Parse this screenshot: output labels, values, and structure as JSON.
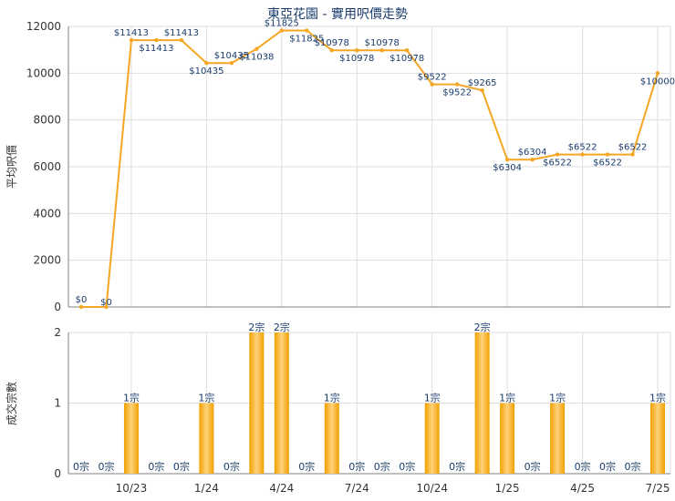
{
  "chart_data": [
    {
      "type": "line",
      "title": "東亞花園 - 實用呎價走勢",
      "ylabel": "平均呎價",
      "ylim": [
        0,
        12000
      ],
      "yticks": [
        "0",
        "2000",
        "4000",
        "6000",
        "8000",
        "10000",
        "12000"
      ],
      "line_color": "#f5a623",
      "grid": true,
      "series": [
        {
          "values": [
            0,
            0,
            11413,
            11413,
            11413,
            10435,
            10435,
            11038,
            11825,
            11825,
            10978,
            10978,
            10978,
            10978,
            9522,
            9522,
            9265,
            6304,
            6304,
            6522,
            6522,
            6522,
            6522,
            10000
          ],
          "labels": [
            "$0",
            "$0",
            "$11413",
            "$11413",
            "$11413",
            "$10435",
            "$10435",
            "$11038",
            "$11825",
            "$11825",
            "$10978",
            "$10978",
            "$10978",
            "$10978",
            "$9522",
            "$9522",
            "$9265",
            "$6304",
            "$6304",
            "$6522",
            "$6522",
            "$6522",
            "$6522",
            "$10000"
          ]
        }
      ]
    },
    {
      "type": "bar",
      "ylabel": "成交宗數",
      "ylim": [
        0,
        2
      ],
      "yticks": [
        "0",
        "1",
        "2"
      ],
      "bar_color": "#f5a623",
      "grid": true,
      "x_tick_labels": [
        {
          "index": 2,
          "label": "10/23"
        },
        {
          "index": 5,
          "label": "1/24"
        },
        {
          "index": 8,
          "label": "4/24"
        },
        {
          "index": 11,
          "label": "7/24"
        },
        {
          "index": 14,
          "label": "10/24"
        },
        {
          "index": 17,
          "label": "1/25"
        },
        {
          "index": 20,
          "label": "4/25"
        },
        {
          "index": 23,
          "label": "7/25"
        }
      ],
      "series": [
        {
          "values": [
            0,
            0,
            1,
            0,
            0,
            1,
            0,
            2,
            2,
            0,
            1,
            0,
            0,
            0,
            1,
            0,
            2,
            1,
            0,
            1,
            0,
            0,
            0,
            1
          ],
          "labels": [
            "0宗",
            "0宗",
            "1宗",
            "0宗",
            "0宗",
            "1宗",
            "0宗",
            "2宗",
            "2宗",
            "0宗",
            "1宗",
            "0宗",
            "0宗",
            "0宗",
            "1宗",
            "0宗",
            "2宗",
            "1宗",
            "0宗",
            "1宗",
            "0宗",
            "0宗",
            "0宗",
            "1宗"
          ]
        }
      ]
    }
  ]
}
